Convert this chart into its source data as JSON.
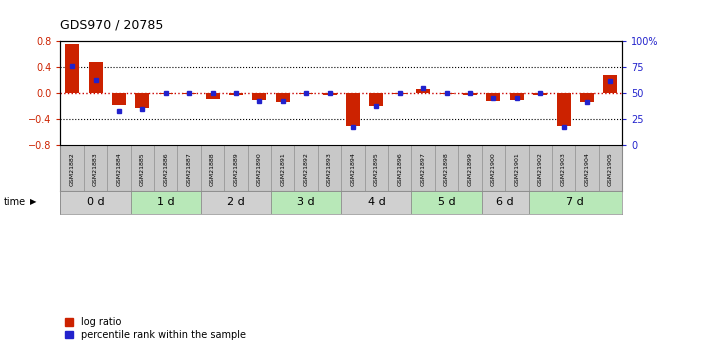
{
  "title": "GDS970 / 20785",
  "samples": [
    "GSM21882",
    "GSM21883",
    "GSM21884",
    "GSM21885",
    "GSM21886",
    "GSM21887",
    "GSM21888",
    "GSM21889",
    "GSM21890",
    "GSM21891",
    "GSM21892",
    "GSM21893",
    "GSM21894",
    "GSM21895",
    "GSM21896",
    "GSM21897",
    "GSM21898",
    "GSM21899",
    "GSM21900",
    "GSM21901",
    "GSM21902",
    "GSM21903",
    "GSM21904",
    "GSM21905"
  ],
  "log_ratio": [
    0.76,
    0.48,
    -0.18,
    -0.22,
    -0.01,
    -0.01,
    -0.08,
    -0.02,
    -0.1,
    -0.13,
    -0.01,
    -0.02,
    -0.5,
    -0.19,
    -0.01,
    0.07,
    -0.01,
    -0.02,
    -0.12,
    -0.1,
    -0.02,
    -0.5,
    -0.14,
    0.28
  ],
  "percentile_rank": [
    76,
    63,
    33,
    35,
    50,
    50,
    50,
    50,
    43,
    43,
    50,
    50,
    18,
    38,
    50,
    55,
    50,
    50,
    46,
    46,
    50,
    18,
    42,
    62
  ],
  "time_groups": [
    {
      "label": "0 d",
      "start": 0,
      "end": 3,
      "color": "#d0d0d0"
    },
    {
      "label": "1 d",
      "start": 3,
      "end": 6,
      "color": "#b8e8b8"
    },
    {
      "label": "2 d",
      "start": 6,
      "end": 9,
      "color": "#d0d0d0"
    },
    {
      "label": "3 d",
      "start": 9,
      "end": 12,
      "color": "#b8e8b8"
    },
    {
      "label": "4 d",
      "start": 12,
      "end": 15,
      "color": "#d0d0d0"
    },
    {
      "label": "5 d",
      "start": 15,
      "end": 18,
      "color": "#b8e8b8"
    },
    {
      "label": "6 d",
      "start": 18,
      "end": 20,
      "color": "#d0d0d0"
    },
    {
      "label": "7 d",
      "start": 20,
      "end": 24,
      "color": "#b8e8b8"
    }
  ],
  "ylim_left": [
    -0.8,
    0.8
  ],
  "ylim_right": [
    0,
    100
  ],
  "yticks_left": [
    -0.8,
    -0.4,
    0.0,
    0.4,
    0.8
  ],
  "yticks_right": [
    0,
    25,
    50,
    75,
    100
  ],
  "ytick_labels_right": [
    "0",
    "25",
    "50",
    "75",
    "100%"
  ],
  "bar_color": "#cc2200",
  "dot_color": "#2222cc",
  "zero_line_color": "#cc0000",
  "grid_color": "#000000",
  "sample_bg_color": "#c8c8c8",
  "bg_color": "#ffffff"
}
